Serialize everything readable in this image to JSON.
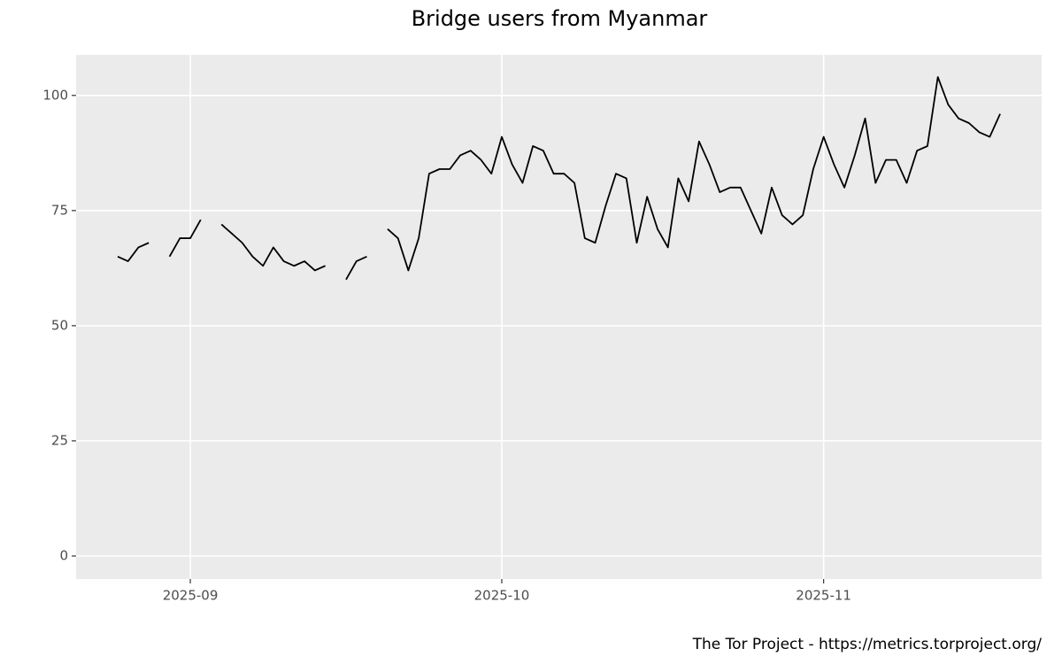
{
  "chart_data": {
    "type": "line",
    "title": "Bridge users from Myanmar",
    "caption": "The Tor Project - https://metrics.torproject.org/",
    "color": "#000000",
    "grid": true,
    "x": [
      "2025-08-25",
      "2025-08-26",
      "2025-08-27",
      "2025-08-28",
      "2025-08-29",
      "2025-08-30",
      "2025-08-31",
      "2025-09-01",
      "2025-09-02",
      "2025-09-03",
      "2025-09-04",
      "2025-09-05",
      "2025-09-06",
      "2025-09-07",
      "2025-09-08",
      "2025-09-09",
      "2025-09-10",
      "2025-09-11",
      "2025-09-12",
      "2025-09-13",
      "2025-09-14",
      "2025-09-15",
      "2025-09-16",
      "2025-09-17",
      "2025-09-18",
      "2025-09-19",
      "2025-09-20",
      "2025-09-21",
      "2025-09-22",
      "2025-09-23",
      "2025-09-24",
      "2025-09-25",
      "2025-09-26",
      "2025-09-27",
      "2025-09-28",
      "2025-09-29",
      "2025-09-30",
      "2025-10-01",
      "2025-10-02",
      "2025-10-03",
      "2025-10-04",
      "2025-10-05",
      "2025-10-06",
      "2025-10-07",
      "2025-10-08",
      "2025-10-09",
      "2025-10-10",
      "2025-10-11",
      "2025-10-12",
      "2025-10-13",
      "2025-10-14",
      "2025-10-15",
      "2025-10-16",
      "2025-10-17",
      "2025-10-18",
      "2025-10-19",
      "2025-10-20",
      "2025-10-21",
      "2025-10-22",
      "2025-10-23",
      "2025-10-24",
      "2025-10-25",
      "2025-10-26",
      "2025-10-27",
      "2025-10-28",
      "2025-10-29",
      "2025-10-30",
      "2025-10-31",
      "2025-11-01",
      "2025-11-02",
      "2025-11-03",
      "2025-11-04",
      "2025-11-05",
      "2025-11-06",
      "2025-11-07",
      "2025-11-08",
      "2025-11-09",
      "2025-11-10",
      "2025-11-11",
      "2025-11-12",
      "2025-11-13",
      "2025-11-14",
      "2025-11-15",
      "2025-11-16",
      "2025-11-17",
      "2025-11-18"
    ],
    "values": [
      65,
      64,
      67,
      68,
      null,
      65,
      69,
      69,
      73,
      null,
      72,
      70,
      68,
      65,
      63,
      67,
      64,
      63,
      64,
      62,
      63,
      null,
      60,
      64,
      65,
      null,
      71,
      69,
      62,
      69,
      83,
      84,
      84,
      87,
      88,
      86,
      83,
      91,
      85,
      81,
      89,
      88,
      83,
      83,
      81,
      69,
      68,
      76,
      83,
      82,
      68,
      78,
      71,
      67,
      82,
      77,
      90,
      85,
      79,
      80,
      80,
      75,
      70,
      80,
      74,
      72,
      74,
      84,
      91,
      85,
      80,
      87,
      95,
      81,
      86,
      86,
      81,
      88,
      89,
      104,
      98,
      95,
      94,
      92,
      91,
      96
    ],
    "xlim": [
      "2025-08-21",
      "2025-11-22"
    ],
    "xticks": [
      {
        "value": "2025-09-01",
        "label": "2025-09"
      },
      {
        "value": "2025-10-01",
        "label": "2025-10"
      },
      {
        "value": "2025-11-01",
        "label": "2025-11"
      }
    ],
    "ylim": [
      -5,
      108.8
    ],
    "yticks": [
      0,
      25,
      50,
      75,
      100
    ]
  }
}
